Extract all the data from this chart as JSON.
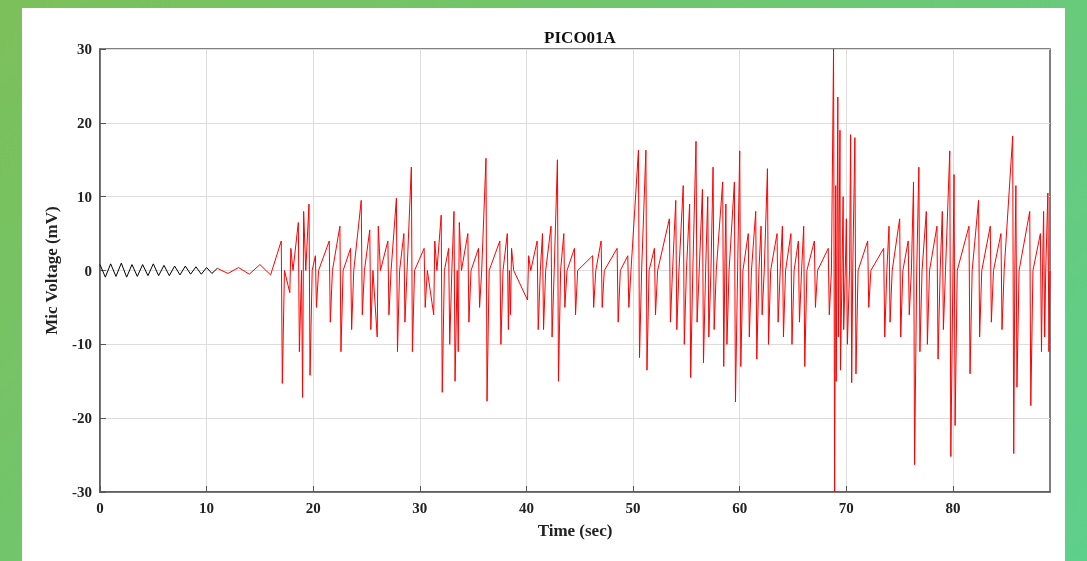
{
  "chart_data": {
    "type": "line",
    "title": "PICO01A",
    "xlabel": "Time (sec)",
    "ylabel": "Mic Voltage (mV)",
    "xlim": [
      0,
      89.1
    ],
    "xticks": [
      0,
      10,
      20,
      30,
      40,
      50,
      60,
      70,
      80
    ],
    "ylim": [
      -30,
      30
    ],
    "yticks": [
      -30,
      -20,
      -10,
      0,
      10,
      20,
      30
    ],
    "grid": true,
    "marker": "none",
    "line_style": "solid",
    "series": [
      {
        "color": "#000000",
        "x": [
          0,
          0.5,
          1,
          1.5,
          2,
          2.5,
          3,
          3.5,
          4,
          4.5,
          5,
          5.5,
          6,
          6.5,
          7,
          7.5,
          8,
          8.5,
          9,
          9.5,
          10,
          10.5,
          11
        ],
        "values": [
          0.8,
          -0.9,
          0.9,
          -0.8,
          1.0,
          -0.9,
          0.8,
          -0.8,
          0.8,
          -0.7,
          0.9,
          -0.7,
          0.7,
          -0.7,
          0.6,
          -0.6,
          0.6,
          -0.5,
          0.5,
          -0.5,
          0.4,
          -0.4,
          0.3
        ]
      },
      {
        "color": "#ff0000",
        "x": [
          11,
          12,
          13,
          14,
          15,
          16,
          17.0,
          17.1,
          17.3,
          17.8,
          17.9,
          18.1,
          18.6,
          18.7,
          18.9,
          19.0,
          19.1,
          19.3,
          19.6,
          19.7,
          19.9,
          20.2,
          20.3,
          20.5,
          21.5,
          21.6,
          21.8,
          22.5,
          22.6,
          22.8,
          23.5,
          23.6,
          23.8,
          24.5,
          24.6,
          24.8,
          25.3,
          25.4,
          25.6,
          26.0,
          26.1,
          26.3,
          27.0,
          27.1,
          27.3,
          27.8,
          27.9,
          28.1,
          28.5,
          28.6,
          28.8,
          29.2,
          29.3,
          29.5,
          30.4,
          30.5,
          30.7,
          31.3,
          31.4,
          31.6,
          32.0,
          32.1,
          32.3,
          32.7,
          32.8,
          33.0,
          33.2,
          33.3,
          33.5,
          33.6,
          33.7,
          33.9,
          34.5,
          34.6,
          34.8,
          35.5,
          35.6,
          35.8,
          36.2,
          36.3,
          36.5,
          37.5,
          37.6,
          37.8,
          38.2,
          38.3,
          38.4,
          38.5,
          38.6,
          38.8,
          40.1,
          40.2,
          40.4,
          41.0,
          41.1,
          41.3,
          41.5,
          41.6,
          41.8,
          42.3,
          42.4,
          42.6,
          42.9,
          43.0,
          43.2,
          43.5,
          43.6,
          43.8,
          44.5,
          44.6,
          44.8,
          46.2,
          46.3,
          46.5,
          47.0,
          47.1,
          47.3,
          48.5,
          48.6,
          48.8,
          49.5,
          49.6,
          49.8,
          50.5,
          50.6,
          50.8,
          51.2,
          51.3,
          51.5,
          52.0,
          52.1,
          52.3,
          53.4,
          53.5,
          53.7,
          54.0,
          54.1,
          54.3,
          54.7,
          54.8,
          55.0,
          55.3,
          55.4,
          55.6,
          55.9,
          56.0,
          56.2,
          56.5,
          56.6,
          56.8,
          57.0,
          57.1,
          57.3,
          57.5,
          57.6,
          57.8,
          58.4,
          58.5,
          58.6,
          58.7,
          58.8,
          59.0,
          59.5,
          59.6,
          59.8,
          60.0,
          60.1,
          60.3,
          60.8,
          60.9,
          61.1,
          61.5,
          61.6,
          61.8,
          62.0,
          62.1,
          62.3,
          62.6,
          62.7,
          62.9,
          63.5,
          63.6,
          63.8,
          64.0,
          64.1,
          64.3,
          64.8,
          64.9,
          65.1,
          65.5,
          65.6,
          65.8,
          66.0,
          66.1,
          66.3,
          67.0,
          67.1,
          67.3,
          68.3,
          68.4,
          68.6,
          68.8,
          68.9,
          69.0,
          69.05,
          69.2,
          69.25,
          69.4,
          69.45,
          69.7,
          69.75,
          69.9,
          70.0,
          70.1,
          70.3,
          70.4,
          70.5,
          70.6,
          70.8,
          70.9,
          71.1,
          72.0,
          72.1,
          72.3,
          73.5,
          73.6,
          73.8,
          74.0,
          74.1,
          74.3,
          75.0,
          75.1,
          75.3,
          75.8,
          75.9,
          76.1,
          76.3,
          76.4,
          76.6,
          76.8,
          76.9,
          77.1,
          77.5,
          77.6,
          77.8,
          78.5,
          78.6,
          78.8,
          79.0,
          79.1,
          79.3,
          79.7,
          79.8,
          80.0,
          80.1,
          80.2,
          80.4,
          81.5,
          81.6,
          81.8,
          82.4,
          82.5,
          82.7,
          83.5,
          83.6,
          83.8,
          84.5,
          84.6,
          84.8,
          85.6,
          85.7,
          85.8,
          85.9,
          86.0,
          86.2,
          87.2,
          87.3,
          87.5,
          88.2,
          88.3,
          88.4,
          88.5,
          88.6,
          88.7,
          88.9,
          89.0,
          89.1
        ],
        "values": [
          0.3,
          -0.4,
          0.4,
          -0.5,
          0.8,
          -0.6,
          4,
          -15.3,
          0,
          -3,
          3,
          0,
          6.5,
          -11,
          0,
          -17.2,
          8,
          0,
          9,
          -14.2,
          0,
          2,
          -5,
          0,
          4,
          -7,
          0,
          6,
          -11,
          0,
          3,
          -8,
          0,
          9.5,
          -6,
          0,
          5.5,
          -8,
          0,
          -9,
          6,
          0,
          4,
          -6,
          0,
          9.8,
          -11,
          0,
          5,
          -7,
          0,
          14,
          -11,
          0,
          3,
          -5,
          0,
          -6,
          4,
          0,
          7.5,
          -16.5,
          0,
          3,
          -10,
          0,
          8,
          -15,
          0,
          -11,
          6.5,
          0,
          5,
          -7,
          0,
          3,
          -5,
          0,
          15.2,
          -17.7,
          0,
          4,
          -10,
          0,
          5,
          -8,
          0,
          -6,
          3,
          0,
          -4,
          2,
          0,
          4,
          -8,
          0,
          5,
          -8,
          0,
          6,
          -9,
          0,
          15,
          -15,
          0,
          5,
          -5,
          0,
          3,
          -6,
          0,
          2,
          -5,
          0,
          4,
          -5,
          0,
          3,
          -7,
          0,
          2,
          -5,
          0,
          16.3,
          -11.8,
          0,
          16.3,
          -13.5,
          0,
          3,
          -6,
          0,
          7,
          -7,
          0,
          9.5,
          -8,
          0,
          11.5,
          -10,
          0,
          9,
          -14.5,
          0,
          17.5,
          -7,
          0,
          11,
          -12.5,
          0,
          10,
          -9,
          0,
          14,
          -8,
          0,
          12,
          -13,
          0,
          9,
          -10,
          0,
          12,
          -17.8,
          0,
          16.2,
          -13,
          0,
          5,
          -9,
          0,
          8,
          -12,
          0,
          6,
          -6,
          0,
          13.8,
          -10,
          0,
          5,
          -7,
          0,
          6,
          -9,
          0,
          5,
          -10,
          0,
          4,
          -7,
          0,
          6,
          -13,
          0,
          4,
          -5,
          0,
          3,
          -6,
          0,
          30,
          -30,
          11.5,
          -15,
          23.5,
          -9,
          19,
          -13.5,
          10,
          -8,
          0,
          7,
          -10,
          0,
          18.4,
          -15.2,
          0,
          18,
          -14,
          0,
          4,
          -5,
          0,
          3,
          -9,
          0,
          6,
          -7,
          0,
          7,
          -9,
          0,
          4,
          -6,
          0,
          12,
          -26.3,
          0,
          14,
          -11,
          0,
          8,
          -10,
          0,
          6,
          -12,
          0,
          8,
          -8,
          0,
          16.2,
          -25.2,
          0,
          13,
          -21,
          0,
          6,
          -14,
          0,
          9.5,
          -9,
          0,
          6,
          -7,
          0,
          5,
          -8,
          0,
          18.2,
          -24.8,
          0,
          11.5,
          -15.8,
          0,
          8,
          -18.3,
          0,
          5,
          -11,
          0,
          8,
          -9,
          0,
          10.5,
          -11,
          0
        ]
      }
    ]
  }
}
